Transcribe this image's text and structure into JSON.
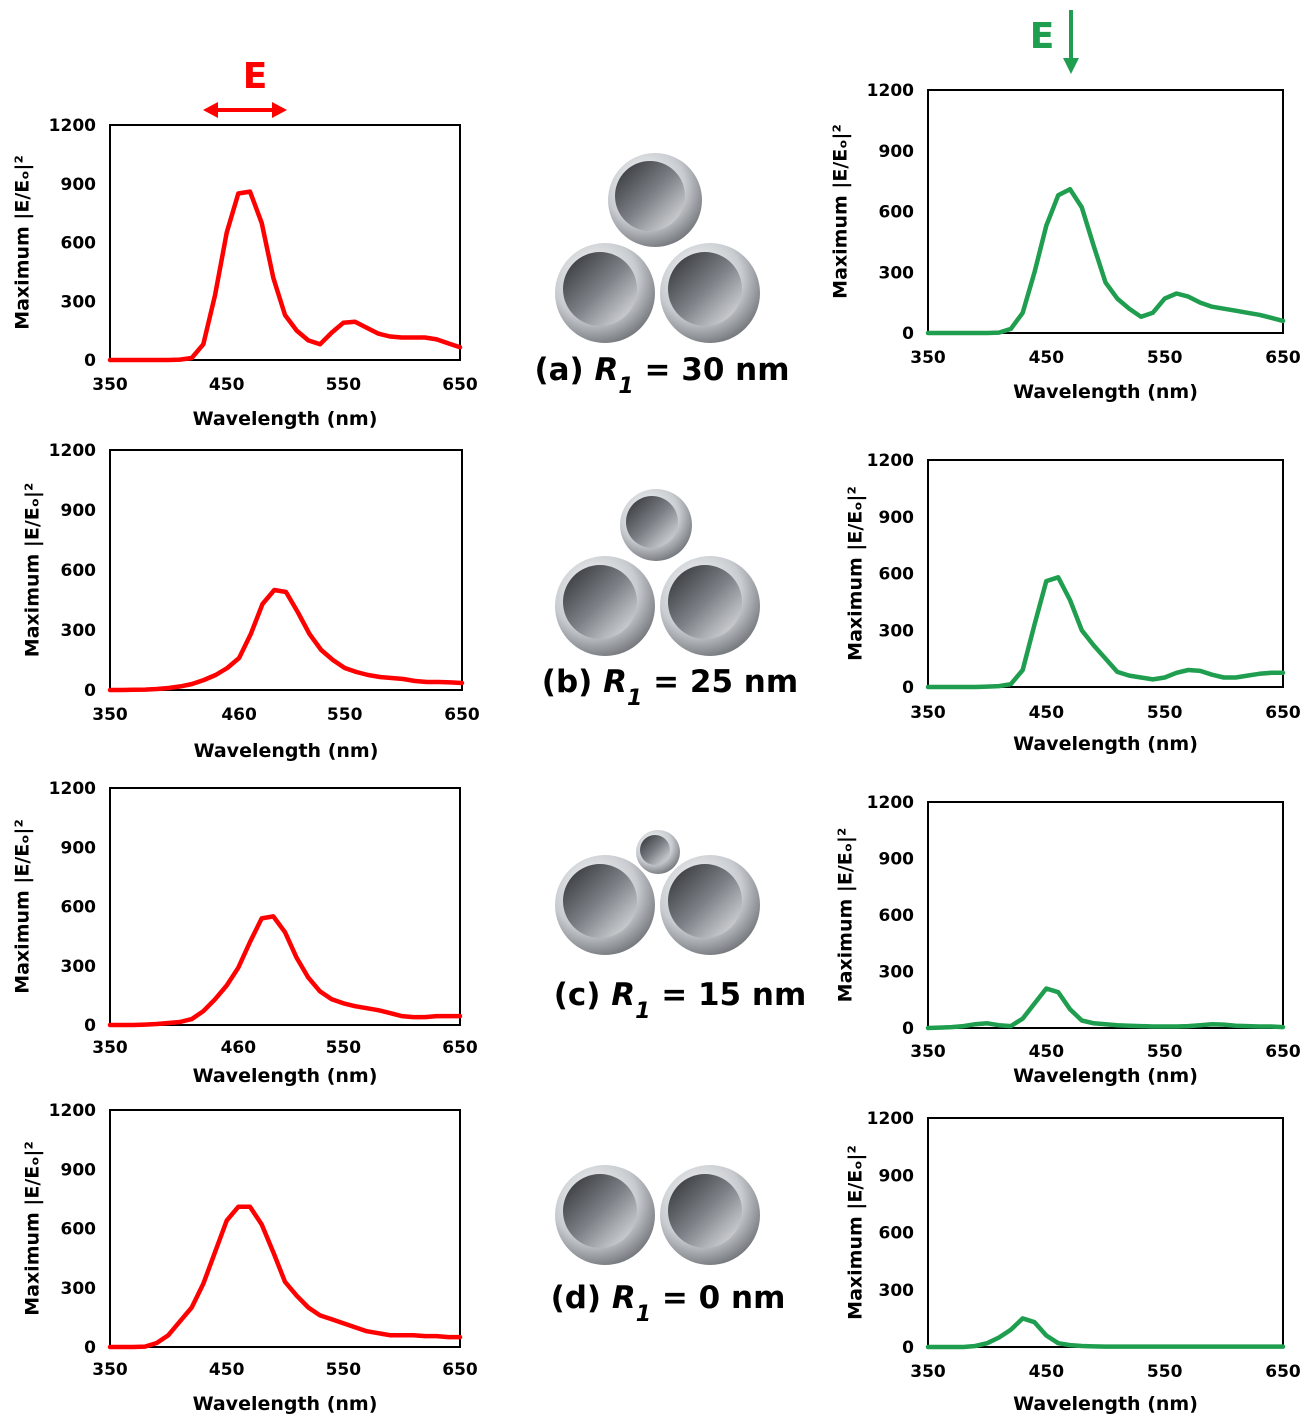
{
  "annotations": {
    "left_field": "E",
    "right_field": "E"
  },
  "radius_symbol": "R",
  "radius_index": "1",
  "panels": [
    {
      "tag": "(a)",
      "value": "= 30 nm"
    },
    {
      "tag": "(b)",
      "value": "= 25 nm"
    },
    {
      "tag": "(c)",
      "value": "= 15 nm"
    },
    {
      "tag": "(d)",
      "value": "= 0 nm"
    }
  ],
  "chart_data": [
    {
      "type": "line",
      "xlabel": "Wavelength (nm)",
      "ylabel": "Maximum |E/Eₒ|²",
      "xlim": [
        350,
        650
      ],
      "ylim": [
        0,
        1200
      ],
      "xticks": [
        350,
        450,
        550,
        650
      ],
      "yticks": [
        0,
        300,
        600,
        900,
        1200
      ],
      "x": [
        350,
        360,
        370,
        380,
        390,
        400,
        410,
        420,
        430,
        440,
        450,
        460,
        470,
        480,
        490,
        500,
        510,
        520,
        530,
        540,
        550,
        560,
        570,
        580,
        590,
        600,
        610,
        620,
        630,
        640,
        650
      ],
      "series": [
        {
          "color": "#ff0000",
          "values": [
            0,
            0,
            0,
            0,
            0,
            0,
            2,
            10,
            80,
            330,
            650,
            850,
            860,
            700,
            420,
            230,
            150,
            100,
            80,
            140,
            190,
            195,
            165,
            135,
            120,
            115,
            115,
            115,
            105,
            85,
            65
          ]
        }
      ]
    },
    {
      "type": "line",
      "xlabel": "Wavelength (nm)",
      "ylabel": "Maximum |E/Eₒ|²",
      "xlim": [
        350,
        650
      ],
      "ylim": [
        0,
        1200
      ],
      "xticks": [
        350,
        460,
        550,
        650
      ],
      "yticks": [
        0,
        300,
        600,
        900,
        1200
      ],
      "x": [
        350,
        360,
        370,
        380,
        390,
        400,
        410,
        420,
        430,
        440,
        450,
        460,
        470,
        480,
        490,
        500,
        510,
        520,
        530,
        540,
        550,
        560,
        570,
        580,
        590,
        600,
        610,
        620,
        630,
        640,
        650
      ],
      "series": [
        {
          "color": "#ff0000",
          "values": [
            0,
            0,
            1,
            2,
            5,
            10,
            18,
            30,
            50,
            75,
            110,
            160,
            280,
            430,
            500,
            490,
            390,
            280,
            200,
            150,
            110,
            90,
            75,
            65,
            60,
            55,
            45,
            40,
            40,
            38,
            35
          ]
        }
      ]
    },
    {
      "type": "line",
      "xlabel": "Wavelength (nm)",
      "ylabel": "Maximum |E/Eₒ|²",
      "xlim": [
        350,
        650
      ],
      "ylim": [
        0,
        1200
      ],
      "xticks": [
        350,
        460,
        550,
        650
      ],
      "yticks": [
        0,
        300,
        600,
        900,
        1200
      ],
      "x": [
        350,
        360,
        370,
        380,
        390,
        400,
        410,
        420,
        430,
        440,
        450,
        460,
        470,
        480,
        490,
        500,
        510,
        520,
        530,
        540,
        550,
        560,
        570,
        580,
        590,
        600,
        610,
        620,
        630,
        640,
        650
      ],
      "series": [
        {
          "color": "#ff0000",
          "values": [
            0,
            0,
            0,
            2,
            5,
            10,
            15,
            30,
            70,
            130,
            200,
            290,
            420,
            540,
            550,
            470,
            340,
            240,
            170,
            130,
            110,
            95,
            85,
            75,
            60,
            45,
            40,
            40,
            45,
            45,
            45
          ]
        }
      ]
    },
    {
      "type": "line",
      "xlabel": "Wavelength (nm)",
      "ylabel": "Maximum |E/Eₒ|²",
      "xlim": [
        350,
        650
      ],
      "ylim": [
        0,
        1200
      ],
      "xticks": [
        350,
        450,
        550,
        650
      ],
      "yticks": [
        0,
        300,
        600,
        900,
        1200
      ],
      "x": [
        350,
        360,
        370,
        380,
        390,
        400,
        410,
        420,
        430,
        440,
        450,
        460,
        470,
        480,
        490,
        500,
        510,
        520,
        530,
        540,
        550,
        560,
        570,
        580,
        590,
        600,
        610,
        620,
        630,
        640,
        650
      ],
      "series": [
        {
          "color": "#ff0000",
          "values": [
            0,
            0,
            0,
            2,
            20,
            60,
            130,
            200,
            320,
            480,
            640,
            710,
            710,
            620,
            480,
            330,
            260,
            200,
            160,
            140,
            120,
            100,
            80,
            70,
            60,
            60,
            60,
            55,
            55,
            50,
            50
          ]
        }
      ]
    },
    {
      "type": "line",
      "xlabel": "Wavelength (nm)",
      "ylabel": "Maximum |E/Eₒ|²",
      "xlim": [
        350,
        650
      ],
      "ylim": [
        0,
        1200
      ],
      "xticks": [
        350,
        450,
        550,
        650
      ],
      "yticks": [
        0,
        300,
        600,
        900,
        1200
      ],
      "x": [
        350,
        360,
        370,
        380,
        390,
        400,
        410,
        420,
        430,
        440,
        450,
        460,
        470,
        480,
        490,
        500,
        510,
        520,
        530,
        540,
        550,
        560,
        570,
        580,
        590,
        600,
        610,
        620,
        630,
        640,
        650
      ],
      "series": [
        {
          "color": "#1f9e4f",
          "values": [
            0,
            0,
            0,
            0,
            0,
            0,
            2,
            20,
            100,
            300,
            530,
            680,
            710,
            620,
            430,
            250,
            170,
            120,
            80,
            100,
            170,
            195,
            180,
            150,
            130,
            120,
            110,
            100,
            90,
            75,
            60
          ]
        }
      ]
    },
    {
      "type": "line",
      "xlabel": "Wavelength (nm)",
      "ylabel": "Maximum |E/Eₒ|²",
      "xlim": [
        350,
        650
      ],
      "ylim": [
        0,
        1200
      ],
      "xticks": [
        350,
        450,
        550,
        650
      ],
      "yticks": [
        0,
        300,
        600,
        900,
        1200
      ],
      "x": [
        350,
        360,
        370,
        380,
        390,
        400,
        410,
        420,
        430,
        440,
        450,
        460,
        470,
        480,
        490,
        500,
        510,
        520,
        530,
        540,
        550,
        560,
        570,
        580,
        590,
        600,
        610,
        620,
        630,
        640,
        650
      ],
      "series": [
        {
          "color": "#1f9e4f",
          "values": [
            0,
            0,
            0,
            0,
            0,
            2,
            5,
            15,
            90,
            330,
            560,
            580,
            460,
            300,
            220,
            150,
            80,
            60,
            50,
            40,
            50,
            75,
            90,
            85,
            65,
            50,
            50,
            60,
            70,
            75,
            75
          ]
        }
      ]
    },
    {
      "type": "line",
      "xlabel": "Wavelength (nm)",
      "ylabel": "Maximum |E/Eₒ|²",
      "xlim": [
        350,
        650
      ],
      "ylim": [
        0,
        1200
      ],
      "xticks": [
        350,
        450,
        550,
        650
      ],
      "yticks": [
        0,
        300,
        600,
        900,
        1200
      ],
      "x": [
        350,
        360,
        370,
        380,
        390,
        400,
        410,
        420,
        430,
        440,
        450,
        460,
        470,
        480,
        490,
        500,
        510,
        520,
        530,
        540,
        550,
        560,
        570,
        580,
        590,
        600,
        610,
        620,
        630,
        640,
        650
      ],
      "series": [
        {
          "color": "#1f9e4f",
          "values": [
            0,
            2,
            5,
            10,
            20,
            25,
            15,
            10,
            50,
            130,
            210,
            190,
            100,
            40,
            25,
            20,
            15,
            12,
            10,
            8,
            8,
            8,
            10,
            15,
            20,
            18,
            12,
            10,
            8,
            8,
            5
          ]
        }
      ]
    },
    {
      "type": "line",
      "xlabel": "Wavelength (nm)",
      "ylabel": "Maximum |E/Eₒ|²",
      "xlim": [
        350,
        650
      ],
      "ylim": [
        0,
        1200
      ],
      "xticks": [
        350,
        450,
        550,
        650
      ],
      "yticks": [
        0,
        300,
        600,
        900,
        1200
      ],
      "x": [
        350,
        360,
        370,
        380,
        390,
        400,
        410,
        420,
        430,
        440,
        450,
        460,
        470,
        480,
        490,
        500,
        510,
        520,
        530,
        540,
        550,
        560,
        570,
        580,
        590,
        600,
        610,
        620,
        630,
        640,
        650
      ],
      "series": [
        {
          "color": "#1f9e4f",
          "values": [
            0,
            0,
            0,
            0,
            5,
            20,
            50,
            90,
            150,
            130,
            60,
            20,
            10,
            5,
            3,
            2,
            2,
            2,
            2,
            2,
            2,
            2,
            2,
            2,
            2,
            2,
            2,
            2,
            2,
            2,
            2
          ]
        }
      ]
    }
  ]
}
